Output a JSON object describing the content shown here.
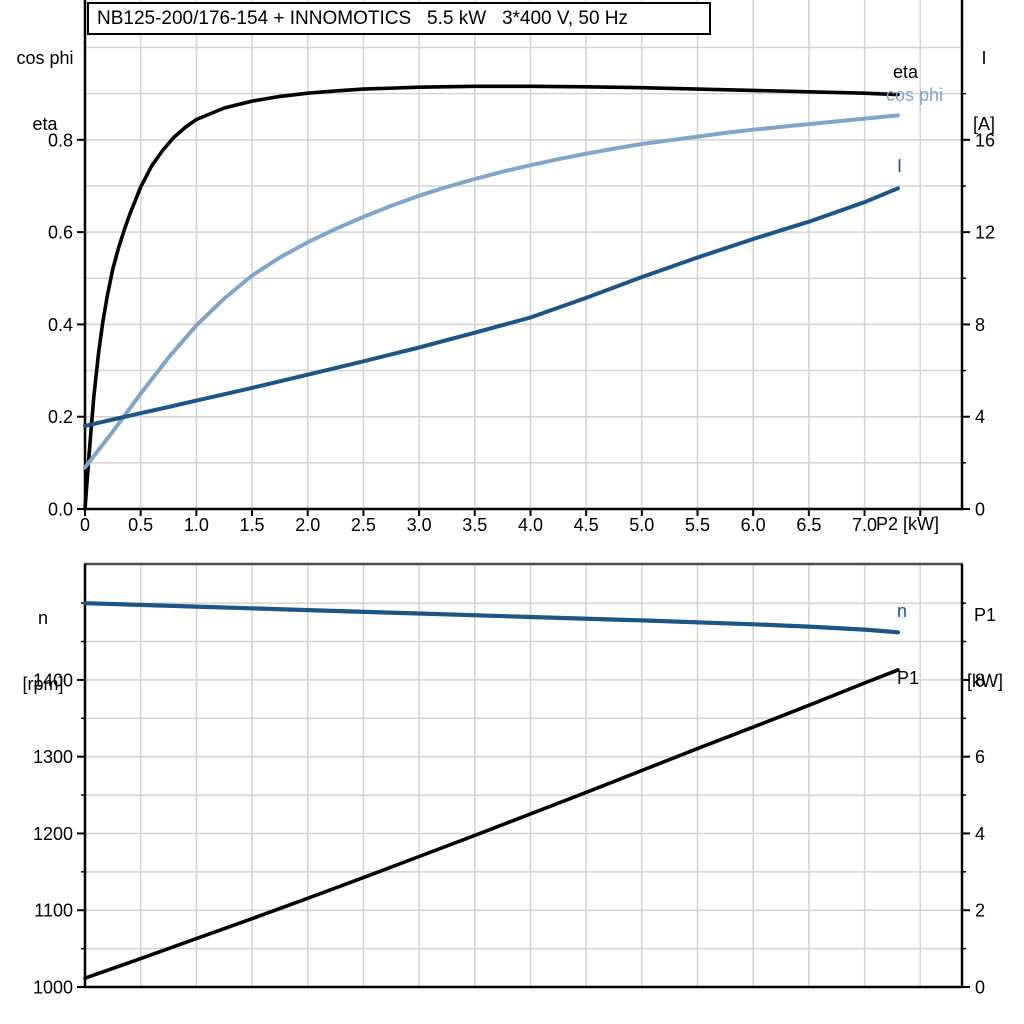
{
  "title_box": {
    "text": "NB125-200/176-154 + INNOMOTICS   5.5 kW   3*400 V, 50 Hz"
  },
  "colors": {
    "black": "#000000",
    "dark_blue": "#1c5586",
    "light_blue": "#7fa6c9",
    "grid": "#d3d3d3",
    "frame": "#000000",
    "bottom_chart_top_frame": "#4d4d4d"
  },
  "top_chart": {
    "left_axis": {
      "line1": "cos phi",
      "line2": "eta"
    },
    "right_axis": {
      "line1": "I",
      "line2": "[A]"
    },
    "x_axis": {
      "unit_label": "P2 [kW]"
    },
    "curve_labels": {
      "eta": "eta",
      "cos_phi": "cos phi",
      "current": "I"
    }
  },
  "bottom_chart": {
    "left_axis": {
      "line1": "n",
      "line2": "[rpm]"
    },
    "right_axis": {
      "line1": "P1",
      "line2": "[kW]"
    },
    "curve_labels": {
      "speed": "n",
      "input_power": "P1"
    }
  },
  "chart_data": [
    {
      "type": "line",
      "title": "NB125-200/176-154 + INNOMOTICS   5.5 kW   3*400 V, 50 Hz",
      "xlabel": "P2 [kW]",
      "ylabel_left": "cos phi / eta",
      "ylabel_right": "I [A]",
      "xlim": [
        0,
        7.875
      ],
      "ylim_left": [
        0,
        1.103
      ],
      "ylim_right": [
        0,
        22.06
      ],
      "grid": true,
      "legend_position": "end-of-curve",
      "x_major_ticks": [
        0,
        0.5,
        1,
        1.5,
        2,
        2.5,
        3,
        3.5,
        4,
        4.5,
        5,
        5.5,
        6,
        6.5,
        7,
        7.5
      ],
      "x_tick_labels": [
        "0",
        "0.5",
        "1.0",
        "1.5",
        "2.0",
        "2.5",
        "3.0",
        "3.5",
        "4.0",
        "4.5",
        "5.0",
        "5.5",
        "6.0",
        "6.5",
        "7.0",
        ""
      ],
      "h_gridlines": [
        0.1,
        0.2,
        0.3,
        0.4,
        0.5,
        0.6,
        0.7,
        0.8,
        0.9,
        1.0
      ],
      "left_ticks": {
        "values": [
          0,
          0.2,
          0.4,
          0.6,
          0.8
        ],
        "labels": [
          "0.0",
          "0.2",
          "0.4",
          "0.6",
          "0.8"
        ],
        "minor": []
      },
      "right_ticks": {
        "values": [
          0,
          4,
          8,
          12,
          16
        ],
        "labels": [
          "0",
          "4",
          "8",
          "12",
          "16"
        ],
        "minor": [
          2,
          6,
          10,
          14,
          18
        ]
      },
      "series": [
        {
          "name": "eta",
          "axis": "left",
          "color": "#000000",
          "points": [
            [
              0,
              0
            ],
            [
              0.04,
              0.13
            ],
            [
              0.08,
              0.245
            ],
            [
              0.12,
              0.335
            ],
            [
              0.16,
              0.405
            ],
            [
              0.2,
              0.462
            ],
            [
              0.25,
              0.52
            ],
            [
              0.3,
              0.565
            ],
            [
              0.35,
              0.603
            ],
            [
              0.4,
              0.637
            ],
            [
              0.5,
              0.698
            ],
            [
              0.6,
              0.744
            ],
            [
              0.7,
              0.778
            ],
            [
              0.8,
              0.806
            ],
            [
              0.9,
              0.827
            ],
            [
              1,
              0.844
            ],
            [
              1.25,
              0.869
            ],
            [
              1.5,
              0.884
            ],
            [
              1.75,
              0.894
            ],
            [
              2,
              0.901
            ],
            [
              2.25,
              0.906
            ],
            [
              2.5,
              0.91
            ],
            [
              3,
              0.914
            ],
            [
              3.5,
              0.916
            ],
            [
              4,
              0.916
            ],
            [
              4.5,
              0.915
            ],
            [
              5,
              0.913
            ],
            [
              5.5,
              0.91
            ],
            [
              6,
              0.907
            ],
            [
              6.5,
              0.904
            ],
            [
              7,
              0.901
            ],
            [
              7.3,
              0.898
            ]
          ]
        },
        {
          "name": "cos phi",
          "axis": "left",
          "color": "#7fa6c9",
          "points": [
            [
              0,
              0.09
            ],
            [
              0.25,
              0.168
            ],
            [
              0.5,
              0.25
            ],
            [
              0.75,
              0.328
            ],
            [
              1,
              0.398
            ],
            [
              1.25,
              0.456
            ],
            [
              1.5,
              0.506
            ],
            [
              1.75,
              0.545
            ],
            [
              2,
              0.578
            ],
            [
              2.25,
              0.607
            ],
            [
              2.5,
              0.633
            ],
            [
              2.75,
              0.657
            ],
            [
              3,
              0.679
            ],
            [
              3.25,
              0.698
            ],
            [
              3.5,
              0.715
            ],
            [
              3.75,
              0.731
            ],
            [
              4,
              0.745
            ],
            [
              4.25,
              0.758
            ],
            [
              4.5,
              0.77
            ],
            [
              4.75,
              0.781
            ],
            [
              5,
              0.791
            ],
            [
              5.25,
              0.799
            ],
            [
              5.5,
              0.807
            ],
            [
              5.75,
              0.815
            ],
            [
              6,
              0.822
            ],
            [
              6.25,
              0.828
            ],
            [
              6.5,
              0.834
            ],
            [
              6.75,
              0.84
            ],
            [
              7,
              0.846
            ],
            [
              7.3,
              0.853
            ]
          ]
        },
        {
          "name": "I",
          "axis": "right",
          "color": "#1c5586",
          "points": [
            [
              0,
              3.6
            ],
            [
              0.25,
              3.88
            ],
            [
              0.5,
              4.15
            ],
            [
              0.75,
              4.42
            ],
            [
              1,
              4.7
            ],
            [
              1.5,
              5.25
            ],
            [
              2,
              5.82
            ],
            [
              2.5,
              6.4
            ],
            [
              3,
              7
            ],
            [
              3.5,
              7.64
            ],
            [
              4,
              8.3
            ],
            [
              4.5,
              9.15
            ],
            [
              5,
              10.05
            ],
            [
              5.5,
              10.9
            ],
            [
              6,
              11.7
            ],
            [
              6.5,
              12.45
            ],
            [
              7,
              13.3
            ],
            [
              7.3,
              13.9
            ]
          ]
        }
      ]
    },
    {
      "type": "line",
      "xlabel": "",
      "ylabel_left": "n [rpm]",
      "ylabel_right": "P1 [kW]",
      "xlim": [
        0,
        7.875
      ],
      "ylim_left": [
        1000,
        1551
      ],
      "ylim_right": [
        0,
        11.02
      ],
      "grid": true,
      "legend_position": "end-of-curve",
      "x_major_ticks": [
        0,
        0.5,
        1,
        1.5,
        2,
        2.5,
        3,
        3.5,
        4,
        4.5,
        5,
        5.5,
        6,
        6.5,
        7,
        7.5
      ],
      "x_tick_labels": [],
      "h_gridlines": [
        1050,
        1100,
        1150,
        1200,
        1250,
        1300,
        1350,
        1400,
        1450,
        1500
      ],
      "left_ticks": {
        "values": [
          1000,
          1100,
          1200,
          1300,
          1400
        ],
        "labels": [
          "1000",
          "1100",
          "1200",
          "1300",
          "1400"
        ],
        "minor": [
          1050,
          1150,
          1250,
          1350,
          1450,
          1500
        ]
      },
      "right_ticks": {
        "values": [
          0,
          2,
          4,
          6,
          8
        ],
        "labels": [
          "0",
          "2",
          "4",
          "6",
          "8"
        ],
        "minor": [
          1,
          3,
          5,
          7,
          9,
          10
        ]
      },
      "series": [
        {
          "name": "n",
          "axis": "left",
          "color": "#1c5586",
          "points": [
            [
              0,
              1500
            ],
            [
              1,
              1495.5
            ],
            [
              2,
              1491
            ],
            [
              3,
              1486.5
            ],
            [
              4,
              1482
            ],
            [
              5,
              1477.5
            ],
            [
              6,
              1472.5
            ],
            [
              6.5,
              1469.5
            ],
            [
              7,
              1465.5
            ],
            [
              7.3,
              1462
            ]
          ]
        },
        {
          "name": "P1",
          "axis": "right",
          "color": "#000000",
          "points": [
            [
              0,
              0.23
            ],
            [
              0.5,
              0.74
            ],
            [
              1,
              1.26
            ],
            [
              1.5,
              1.78
            ],
            [
              2,
              2.31
            ],
            [
              2.5,
              2.85
            ],
            [
              3,
              3.4
            ],
            [
              3.5,
              3.95
            ],
            [
              4,
              4.51
            ],
            [
              4.5,
              5.07
            ],
            [
              5,
              5.64
            ],
            [
              5.5,
              6.21
            ],
            [
              6,
              6.77
            ],
            [
              6.5,
              7.34
            ],
            [
              7,
              7.92
            ],
            [
              7.3,
              8.26
            ]
          ]
        }
      ]
    }
  ]
}
